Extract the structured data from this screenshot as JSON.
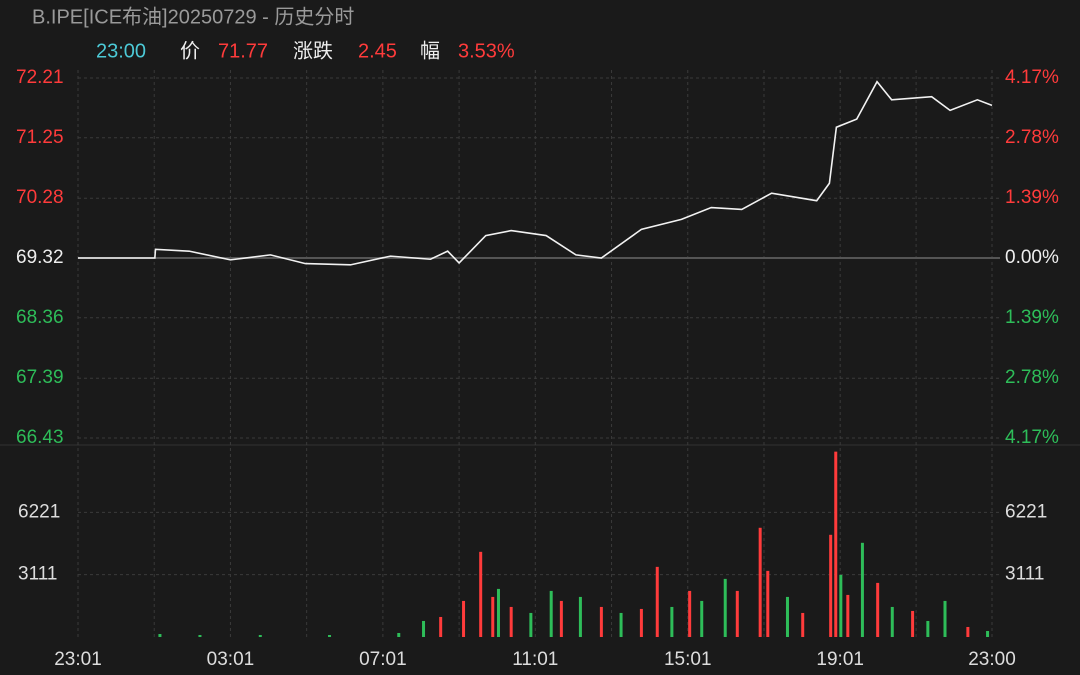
{
  "header": {
    "title": "B.IPE[ICE布油]20250729 - 历史分时",
    "time": "23:00",
    "price_label": "价",
    "price": "71.77",
    "change_label": "涨跌",
    "change": "2.45",
    "pct_label": "幅",
    "pct": "3.53%"
  },
  "chart_data": [
    {
      "type": "line",
      "color": "#f2f2f2",
      "up_color": "#ff3b3b",
      "down_color": "#2ebd59",
      "x": [
        "23:01",
        "01:02",
        "01:03",
        "01:56",
        "03:01",
        "04:04",
        "04:59",
        "06:10",
        "07:13",
        "08:16",
        "08:43",
        "09:01",
        "09:43",
        "10:23",
        "11:18",
        "12:05",
        "12:45",
        "13:48",
        "14:51",
        "15:38",
        "16:26",
        "17:13",
        "18:24",
        "18:44",
        "18:55",
        "19:27",
        "19:59",
        "20:22",
        "21:25",
        "21:54",
        "22:37",
        "23:00"
      ],
      "values": [
        69.32,
        69.32,
        69.46,
        69.43,
        69.29,
        69.37,
        69.23,
        69.21,
        69.35,
        69.3,
        69.43,
        69.24,
        69.68,
        69.76,
        69.68,
        69.37,
        69.32,
        69.78,
        69.94,
        70.13,
        70.1,
        70.36,
        70.24,
        70.52,
        71.42,
        71.55,
        72.15,
        71.86,
        71.91,
        71.69,
        71.86,
        71.77
      ],
      "ylim": [
        66.43,
        72.21
      ],
      "yticks": [
        72.21,
        71.25,
        70.28,
        69.32,
        68.36,
        67.39,
        66.43
      ],
      "y2lim": [
        -4.17,
        4.17
      ],
      "y2ticks": [
        {
          "value": 4.17,
          "label": "4.17%"
        },
        {
          "value": 2.78,
          "label": "2.78%"
        },
        {
          "value": 1.39,
          "label": "1.39%"
        },
        {
          "value": 0,
          "label": "0.00%"
        },
        {
          "value": -1.39,
          "label": "1.39%"
        },
        {
          "value": -2.78,
          "label": "2.78%"
        },
        {
          "value": -4.17,
          "label": "4.17%"
        }
      ],
      "grid": true
    },
    {
      "type": "bar",
      "x": [
        "01:10",
        "02:13",
        "03:48",
        "05:37",
        "07:26",
        "08:05",
        "08:32",
        "09:08",
        "09:35",
        "09:54",
        "10:03",
        "10:23",
        "10:54",
        "11:26",
        "11:42",
        "12:12",
        "12:45",
        "13:16",
        "13:48",
        "14:13",
        "14:36",
        "15:04",
        "15:23",
        "16:00",
        "16:19",
        "16:55",
        "17:07",
        "17:38",
        "18:02",
        "18:46",
        "18:54",
        "19:02",
        "19:13",
        "19:36",
        "20:00",
        "20:23",
        "20:55",
        "21:19",
        "21:46",
        "22:22",
        "22:53"
      ],
      "values": [
        150,
        100,
        100,
        100,
        200,
        800,
        1000,
        1800,
        4250,
        2000,
        2400,
        1500,
        1200,
        2300,
        1800,
        2000,
        1500,
        1200,
        1400,
        3500,
        1500,
        2300,
        1800,
        2900,
        2300,
        5450,
        3300,
        2000,
        1200,
        5100,
        9250,
        3100,
        2100,
        4700,
        2700,
        1500,
        1300,
        800,
        1800,
        500,
        300
      ],
      "colors": [
        "#2ebd59",
        "#2ebd59",
        "#2ebd59",
        "#2ebd59",
        "#2ebd59",
        "#2ebd59",
        "#ff3b3b",
        "#ff3b3b",
        "#ff3b3b",
        "#ff3b3b",
        "#2ebd59",
        "#ff3b3b",
        "#2ebd59",
        "#2ebd59",
        "#ff3b3b",
        "#2ebd59",
        "#ff3b3b",
        "#2ebd59",
        "#ff3b3b",
        "#ff3b3b",
        "#2ebd59",
        "#ff3b3b",
        "#2ebd59",
        "#2ebd59",
        "#ff3b3b",
        "#ff3b3b",
        "#ff3b3b",
        "#2ebd59",
        "#ff3b3b",
        "#ff3b3b",
        "#ff3b3b",
        "#2ebd59",
        "#ff3b3b",
        "#2ebd59",
        "#ff3b3b",
        "#2ebd59",
        "#ff3b3b",
        "#2ebd59",
        "#2ebd59",
        "#ff3b3b",
        "#2ebd59"
      ],
      "ylim": [
        0,
        9332
      ],
      "yticks": [
        3111,
        6221
      ],
      "categories": [
        "23:01",
        "03:01",
        "07:01",
        "11:01",
        "15:01",
        "19:01",
        "23:00"
      ]
    }
  ]
}
